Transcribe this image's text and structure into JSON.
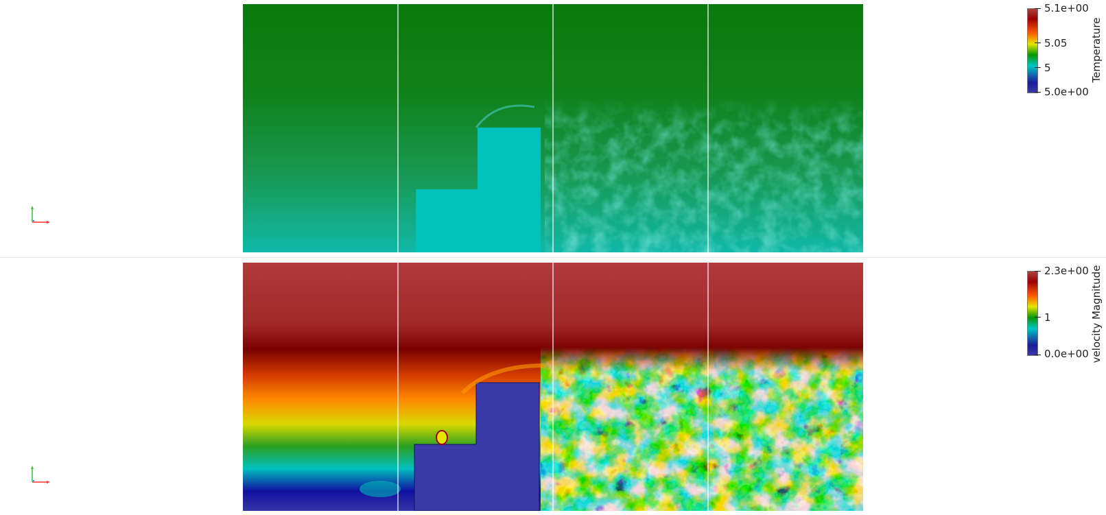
{
  "top_view": {
    "colorbar": {
      "title": "Temperature",
      "labels": [
        "5.1e+00",
        "5.05",
        "5",
        "5.0e+00"
      ],
      "range": [
        5.0,
        5.1
      ],
      "colormap": [
        "#3a3aa8",
        "#1a1aa0",
        "#00c4c4",
        "#009900",
        "#e5e500",
        "#ff6400",
        "#990000",
        "#b04040"
      ]
    },
    "axes_widget": {
      "x_color": "#ff3030",
      "y_color": "#20d020"
    },
    "field_colors": {
      "background": "#0a7a10",
      "obstacle": "#00c0b8",
      "turbulence": "#2fb0a0"
    }
  },
  "bottom_view": {
    "colorbar": {
      "title": "velocity Magnitude",
      "labels": [
        "2.3e+00",
        "1",
        "0.0e+00"
      ],
      "range": [
        0.0,
        2.3
      ],
      "colormap": [
        "#3a3aa8",
        "#1a1aa0",
        "#00c4c4",
        "#009900",
        "#e5e500",
        "#ff6400",
        "#990000",
        "#b04040"
      ]
    },
    "axes_widget": {
      "x_color": "#ff3030",
      "y_color": "#20d020"
    },
    "field_colors": {
      "background": "#b03c3c",
      "obstacle": "#3a3aa5",
      "turbulence": "#0aa8a0"
    }
  }
}
